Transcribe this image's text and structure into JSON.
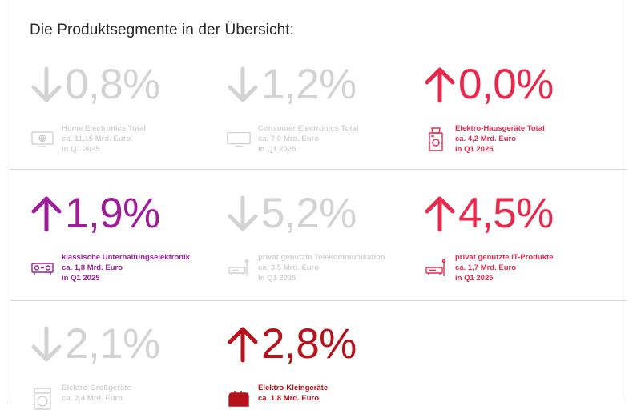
{
  "heading": "Die Produktsegmente in der Übersicht:",
  "colors": {
    "grey": "#d3d3d3",
    "pink": "#e8294c",
    "purple": "#9c1f99",
    "dark_red": "#b5121b",
    "separator": "#d8d8d8"
  },
  "segments": [
    {
      "direction": "down",
      "icon": "monitor-globe-icon",
      "value": "0,8%",
      "name": "Home Electronics Total",
      "amount": "ca. 11,15 Mrd. Euro.",
      "period": "in Q1 2025",
      "color": "grey"
    },
    {
      "direction": "down",
      "icon": "tv-icon",
      "value": "1,2%",
      "name": "Consumer Electronics Total",
      "amount": "ca. 7,0 Mrd. Euro",
      "period": "in Q1 2025",
      "color": "grey"
    },
    {
      "direction": "up",
      "icon": "coffee-machine-icon",
      "value": "0,0%",
      "name": "Elektro-Hausgeräte Total",
      "amount": "ca. 4,2 Mrd. Euro",
      "period": "in Q1 2025",
      "color": "pink"
    },
    {
      "direction": "up",
      "icon": "speaker-icon",
      "value": "1,9%",
      "name": "klassische Unterhaltungselektronik",
      "amount": "ca. 1,8 Mrd. Euro",
      "period": "in Q1 2025",
      "color": "purple"
    },
    {
      "direction": "down",
      "icon": "router-icon",
      "value": "5,2%",
      "name": "privat genutzte Telekommunikation",
      "amount": "ca. 3,5 Mrd. Euro",
      "period": "in Q1 2025",
      "color": "grey"
    },
    {
      "direction": "up",
      "icon": "router-icon",
      "value": "4,5%",
      "name": "privat genutzte IT-Produkte",
      "amount": "ca. 1,7 Mrd. Euro",
      "period": "in Q1 2025",
      "color": "pink"
    },
    {
      "direction": "down",
      "icon": "washing-machine-icon",
      "value": "2,1%",
      "name": "Elektro-Großgeräte",
      "amount": "ca. 2,4 Mrd. Euro",
      "period": "",
      "color": "grey"
    },
    {
      "direction": "up",
      "icon": "toaster-icon",
      "value": "2,8%",
      "name": "Elektro-Kleingeräte",
      "amount": "ca. 1,8 Mrd. Euro.",
      "period": "",
      "color": "dark_red"
    }
  ]
}
